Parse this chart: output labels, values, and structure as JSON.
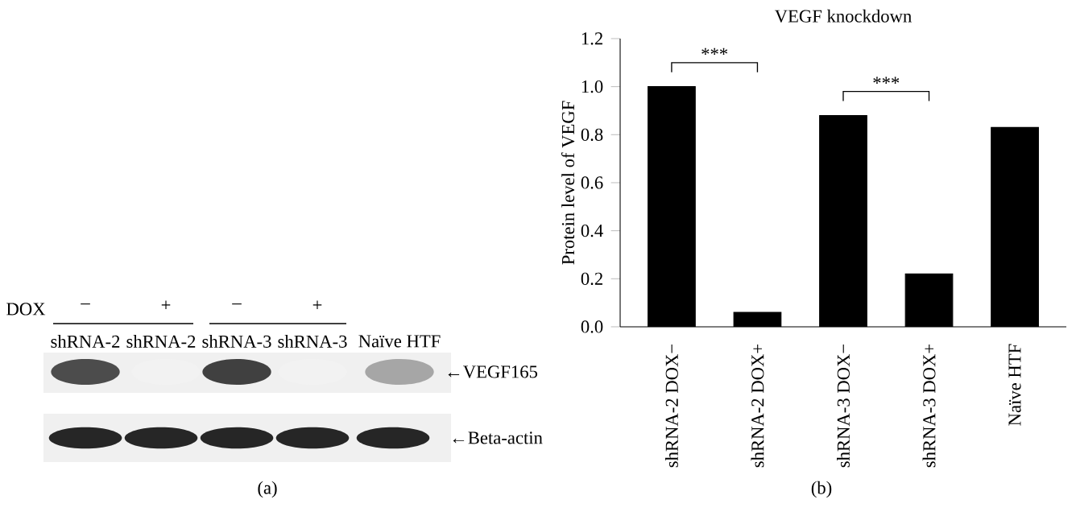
{
  "chart_data": [
    {
      "type": "other",
      "annotations": [
        "DOX",
        "–",
        "+",
        "–",
        "+",
        "shRNA-2",
        "shRNA-2",
        "shRNA-3",
        "shRNA-3",
        "Naïve HTF",
        "←VEGF165",
        "←Beta-actin",
        "(a)"
      ]
    },
    {
      "type": "bar",
      "title": "VEGF knockdown",
      "ylabel": "Protein level of VEGF",
      "categories": [
        "shRNA-2 DOX−",
        "shRNA-2 DOX+",
        "shRNA-3 DOX−",
        "shRNA-3 DOX+",
        "Naïve HTF"
      ],
      "values": [
        1.0,
        0.06,
        0.88,
        0.22,
        0.83
      ],
      "color": "#000000",
      "ylim": [
        0,
        1.2
      ],
      "yticks": [
        {
          "value": 0,
          "label": "0.0"
        },
        {
          "value": 0.2,
          "label": "0.2"
        },
        {
          "value": 0.4,
          "label": "0.4"
        },
        {
          "value": 0.6,
          "label": "0.6"
        },
        {
          "value": 0.8,
          "label": "0.8"
        },
        {
          "value": 1.0,
          "label": "1.0"
        },
        {
          "value": 1.2,
          "label": "1.2"
        }
      ],
      "grid": false,
      "annotations": [
        "***",
        "***",
        "(b)"
      ]
    }
  ]
}
